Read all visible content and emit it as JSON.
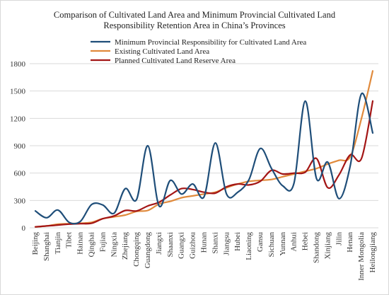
{
  "chart_data": {
    "type": "line",
    "title_line1": "Comparison of Cultivated Land Area and Minimum Provincial Cultivated Land",
    "title_line2": "Responsibility Retention Area in China’s Provinces",
    "xlabel": "",
    "ylabel": "",
    "ylim": [
      0,
      1800
    ],
    "yticks": [
      0,
      300,
      600,
      900,
      1200,
      1500,
      1800
    ],
    "grid": true,
    "legend_position": "top-center",
    "categories": [
      "Beijing",
      "Shanghai",
      "Tianjin",
      "Tibet",
      "Hainan",
      "Qinghai",
      "Fujian",
      "Ningxia",
      "Zhejiang",
      "Chongqing",
      "Guangdong",
      "Jiangxi",
      "Shaanxi",
      "Guangxi",
      "Guizhou",
      "Hunan",
      "Shanxi",
      "Jiangsu",
      "Hubei",
      "Liaoning",
      "Gansu",
      "Sichuan",
      "Yunnan",
      "Anhui",
      "Hebei",
      "Shandong",
      "Xinjiang",
      "Jilin",
      "Henan",
      "Inner Mongolia",
      "Heilongjiang"
    ],
    "series": [
      {
        "name": "Minimum Provincial Responsibility for Cultivated Land Area",
        "color": "#1f4e79",
        "values": [
          185,
          110,
          195,
          60,
          70,
          255,
          250,
          160,
          430,
          310,
          900,
          240,
          520,
          370,
          480,
          340,
          930,
          370,
          390,
          530,
          870,
          650,
          460,
          490,
          1390,
          540,
          720,
          320,
          680,
          1470,
          1040
        ]
      },
      {
        "name": "Existing Cultivated Land Area",
        "color": "#e08a3c",
        "values": [
          10,
          20,
          40,
          45,
          50,
          60,
          100,
          120,
          140,
          180,
          190,
          260,
          290,
          330,
          350,
          370,
          390,
          440,
          480,
          510,
          520,
          530,
          560,
          590,
          620,
          650,
          700,
          740,
          780,
          1200,
          1720
        ]
      },
      {
        "name": "Planned Cultivated Land Reserve Area",
        "color": "#a31515",
        "values": [
          10,
          20,
          30,
          40,
          45,
          50,
          100,
          130,
          190,
          185,
          240,
          280,
          360,
          430,
          420,
          390,
          380,
          450,
          480,
          470,
          510,
          630,
          590,
          600,
          610,
          760,
          440,
          580,
          800,
          760,
          1390
        ]
      }
    ]
  }
}
